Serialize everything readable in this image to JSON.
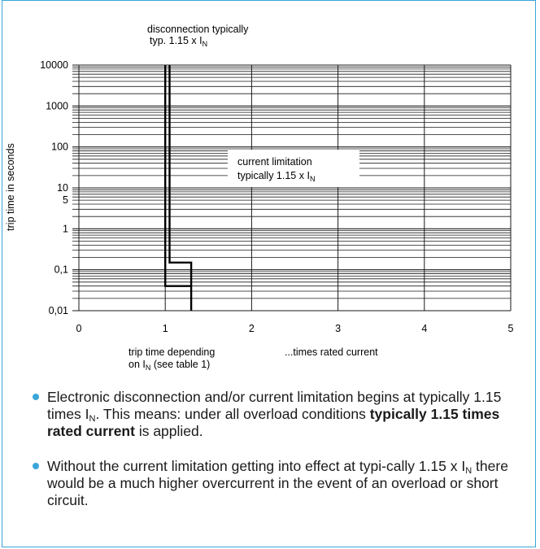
{
  "chart_data": {
    "type": "line",
    "title": "",
    "xlabel": "...times rated current",
    "ylabel": "trip time in seconds",
    "x_ticks": [
      "0",
      "1",
      "2",
      "3",
      "4",
      "5"
    ],
    "xlim": [
      0,
      5
    ],
    "y_ticks": [
      "10000",
      "1000",
      "100",
      "10",
      "5",
      "1",
      "0,1",
      "0,01"
    ],
    "ylim": [
      0.01,
      10000
    ],
    "y_scale": "log",
    "grid": true,
    "series": [
      {
        "points": [
          {
            "x": 1.0,
            "y": 10000
          },
          {
            "x": 1.0,
            "y": 0.04
          },
          {
            "x": 1.3,
            "y": 0.04
          },
          {
            "x": 1.3,
            "y": 0.01
          }
        ]
      },
      {
        "points": [
          {
            "x": 1.05,
            "y": 10000
          },
          {
            "x": 1.05,
            "y": 0.15
          },
          {
            "x": 1.3,
            "y": 0.15
          },
          {
            "x": 1.3,
            "y": 0.04
          }
        ]
      }
    ],
    "annotations": {
      "top_line1": "disconnection typically",
      "top_line2_prefix": "typ. 1.15 x I",
      "top_line2_sub": "N",
      "box_line1": "current limitation",
      "box_line2_prefix": "typically  1.15 x I",
      "box_line2_sub": "N",
      "bottom_line1": "trip time depending",
      "bottom_line2_prefix": "on I",
      "bottom_line2_sub": "N",
      "bottom_line2_suffix": " (see table 1)"
    },
    "colors": {
      "grid": "#1a1a1a",
      "curve": "#000000",
      "frame": "#3aa6d8"
    }
  },
  "bullets": [
    {
      "pre": "Electronic disconnection and/or current limitation begins at typically 1.15 times I",
      "sub": "N",
      "mid": ". This means: under all overload conditions ",
      "bold": "typically 1.15 times rated current",
      "post": " is applied."
    },
    {
      "pre": "Without the current limitation getting into effect at typi-cally 1.15 x I",
      "sub": "N",
      "post": " there would be a much higher overcurrent in the event of an overload or short circuit."
    }
  ]
}
